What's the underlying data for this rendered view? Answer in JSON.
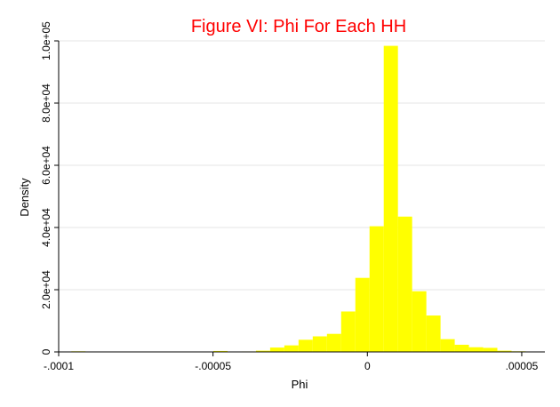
{
  "chart_data": {
    "type": "bar",
    "title": "Figure VI: Phi For Each HH",
    "xlabel": "Phi",
    "ylabel": "Density",
    "xlim": [
      -0.0001,
      5.75e-05
    ],
    "ylim": [
      0,
      100000
    ],
    "x_ticks": [
      {
        "value": -0.0001,
        "label": "-.0001"
      },
      {
        "value": -5e-05,
        "label": "-.00005"
      },
      {
        "value": 0,
        "label": "0"
      },
      {
        "value": 5e-05,
        "label": ".00005"
      }
    ],
    "y_ticks": [
      {
        "value": 0,
        "label": "0"
      },
      {
        "value": 20000,
        "label": "2.0e+04"
      },
      {
        "value": 40000,
        "label": "4.0e+04"
      },
      {
        "value": 60000,
        "label": "6.0e+04"
      },
      {
        "value": 80000,
        "label": "8.0e+04"
      },
      {
        "value": 100000,
        "label": "1.0e+05"
      }
    ],
    "grid": true,
    "bin_width": 4.6e-06,
    "bins": [
      {
        "x": -9.36e-05,
        "y": 200
      },
      {
        "x": -8.9e-05,
        "y": 50
      },
      {
        "x": -4.76e-05,
        "y": 300
      },
      {
        "x": -4.3e-05,
        "y": 100
      },
      {
        "x": -3.84e-05,
        "y": 150
      },
      {
        "x": -3.38e-05,
        "y": 400
      },
      {
        "x": -2.92e-05,
        "y": 1400
      },
      {
        "x": -2.46e-05,
        "y": 2100
      },
      {
        "x": -2e-05,
        "y": 3900
      },
      {
        "x": -1.54e-05,
        "y": 5000
      },
      {
        "x": -1.08e-05,
        "y": 5800
      },
      {
        "x": -6.2e-06,
        "y": 13000
      },
      {
        "x": -1.6e-06,
        "y": 23800
      },
      {
        "x": 3e-06,
        "y": 40400
      },
      {
        "x": 7.6e-06,
        "y": 98400
      },
      {
        "x": 1.22e-05,
        "y": 43500
      },
      {
        "x": 1.68e-05,
        "y": 19500
      },
      {
        "x": 2.14e-05,
        "y": 11700
      },
      {
        "x": 2.6e-05,
        "y": 4100
      },
      {
        "x": 3.06e-05,
        "y": 2300
      },
      {
        "x": 3.52e-05,
        "y": 1500
      },
      {
        "x": 3.98e-05,
        "y": 1300
      },
      {
        "x": 4.44e-05,
        "y": 400
      },
      {
        "x": 4.9e-05,
        "y": 200
      },
      {
        "x": 5.36e-05,
        "y": 100
      }
    ],
    "colors": {
      "bar": "#ffff00",
      "title": "#ff0000",
      "grid": "#e6e6e6",
      "axis": "#000000"
    }
  }
}
